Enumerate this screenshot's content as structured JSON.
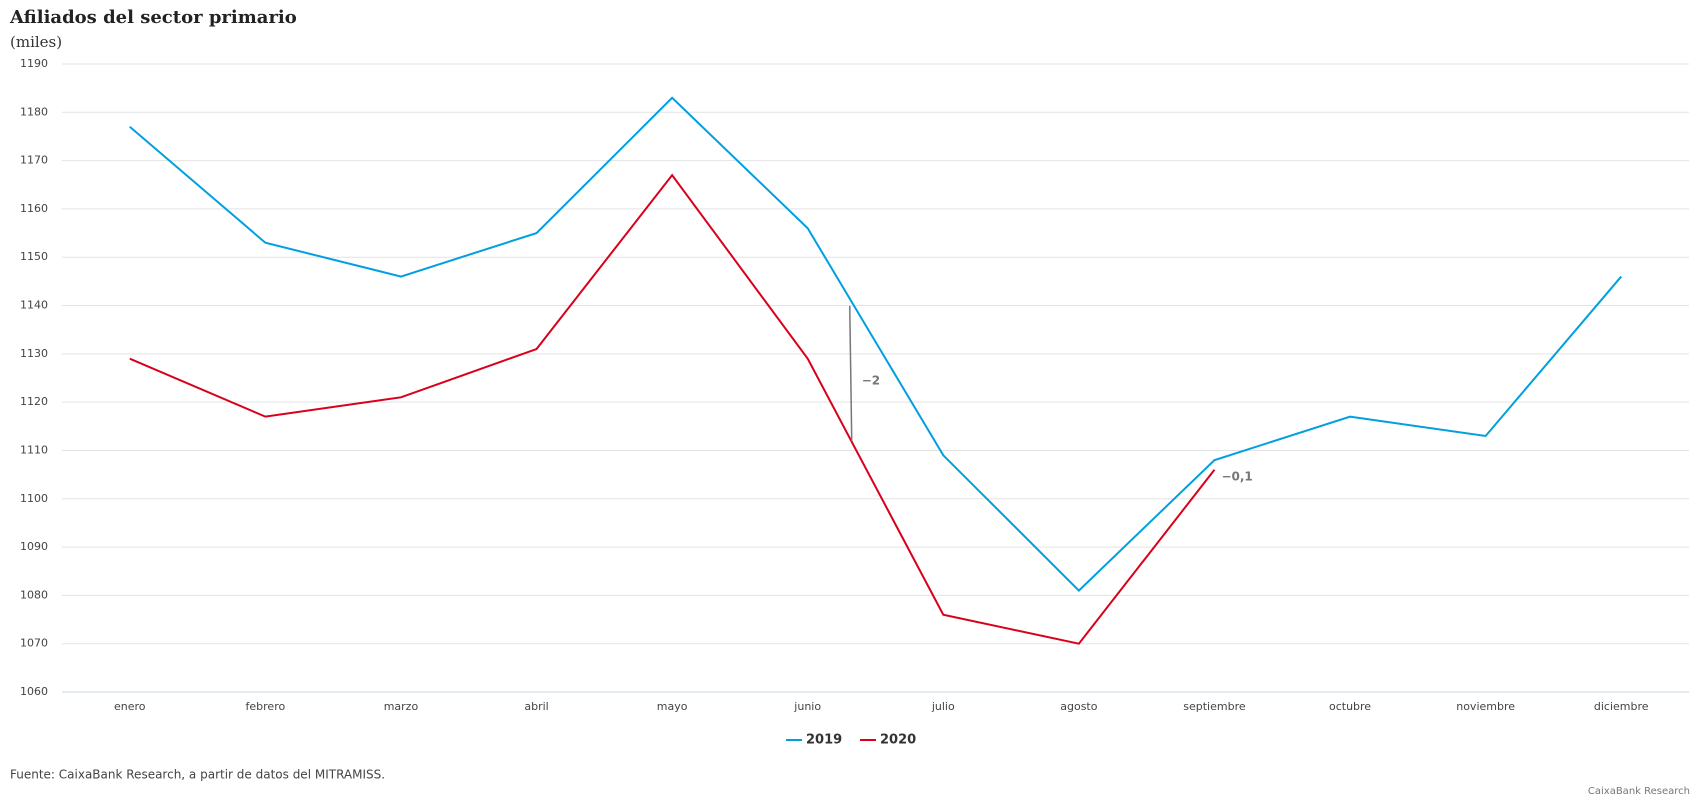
{
  "chart_data": {
    "type": "line",
    "title": "Afiliados del sector primario",
    "subtitle": "(miles)",
    "categories": [
      "enero",
      "febrero",
      "marzo",
      "abril",
      "mayo",
      "junio",
      "julio",
      "agosto",
      "septiembre",
      "octubre",
      "noviembre",
      "diciembre"
    ],
    "series": [
      {
        "name": "2019",
        "color": "#009fdf",
        "values": [
          1177,
          1153,
          1146,
          1155,
          1183,
          1156,
          1109,
          1081,
          1108,
          1117,
          1113,
          1146
        ]
      },
      {
        "name": "2020",
        "color": "#d9001b",
        "values": [
          1129,
          1117,
          1121,
          1131,
          1167,
          1129,
          1076,
          1070,
          1106,
          null,
          null,
          null
        ]
      }
    ],
    "ylim": [
      1060,
      1190
    ],
    "yticks": [
      1060,
      1070,
      1080,
      1090,
      1100,
      1110,
      1120,
      1130,
      1140,
      1150,
      1160,
      1170,
      1180,
      1190
    ],
    "grid": true,
    "annotations": [
      "−2",
      "−0,1"
    ],
    "source": "Fuente: CaixaBank Research, a partir de datos del MITRAMISS.",
    "credit": "CaixaBank Research"
  }
}
